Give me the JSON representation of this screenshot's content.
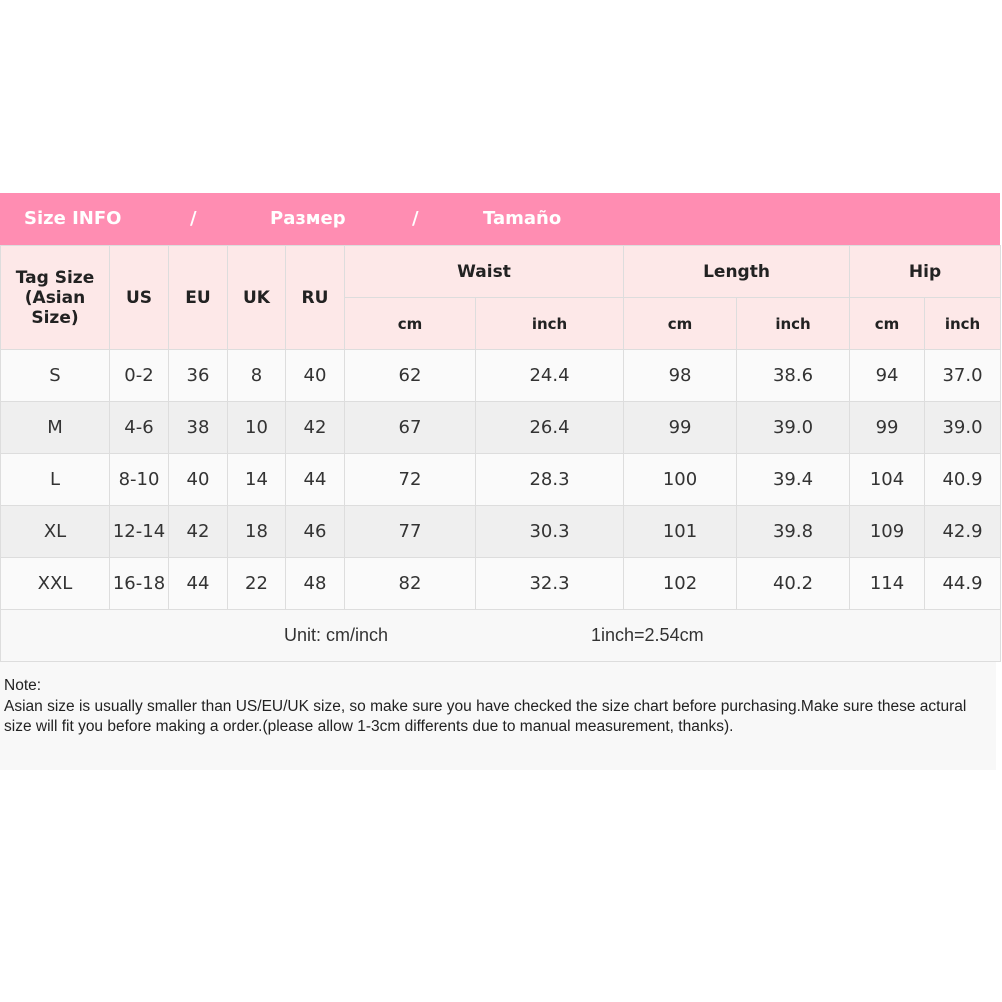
{
  "banner": {
    "part1": "Size INFO",
    "sep1": "/",
    "part2": "Размер",
    "sep2": "/",
    "part3": "Tamaño",
    "color": "#ff8db2"
  },
  "headers": {
    "tag": "Tag Size (Asian Size)",
    "us": "US",
    "eu": "EU",
    "uk": "UK",
    "ru": "RU",
    "waist": "Waist",
    "length": "Length",
    "hip": "Hip",
    "cm": "cm",
    "inch": "inch"
  },
  "rows": [
    [
      "S",
      "0-2",
      "36",
      "8",
      "40",
      "62",
      "24.4",
      "98",
      "38.6",
      "94",
      "37.0"
    ],
    [
      "M",
      "4-6",
      "38",
      "10",
      "42",
      "67",
      "26.4",
      "99",
      "39.0",
      "99",
      "39.0"
    ],
    [
      "L",
      "8-10",
      "40",
      "14",
      "44",
      "72",
      "28.3",
      "100",
      "39.4",
      "104",
      "40.9"
    ],
    [
      "XL",
      "12-14",
      "42",
      "18",
      "46",
      "77",
      "30.3",
      "101",
      "39.8",
      "109",
      "42.9"
    ],
    [
      "XXL",
      "16-18",
      "44",
      "22",
      "48",
      "82",
      "32.3",
      "102",
      "40.2",
      "114",
      "44.9"
    ]
  ],
  "unit": {
    "unit": "Unit: cm/inch",
    "conversion": "1inch=2.54cm"
  },
  "note": {
    "label": "Note:",
    "text": "Asian size is usually smaller than US/EU/UK size, so make sure you have checked the size chart before purchasing.Make sure these actural size will fit you before making a order.(please allow 1-3cm differents due to manual measurement, thanks)."
  }
}
